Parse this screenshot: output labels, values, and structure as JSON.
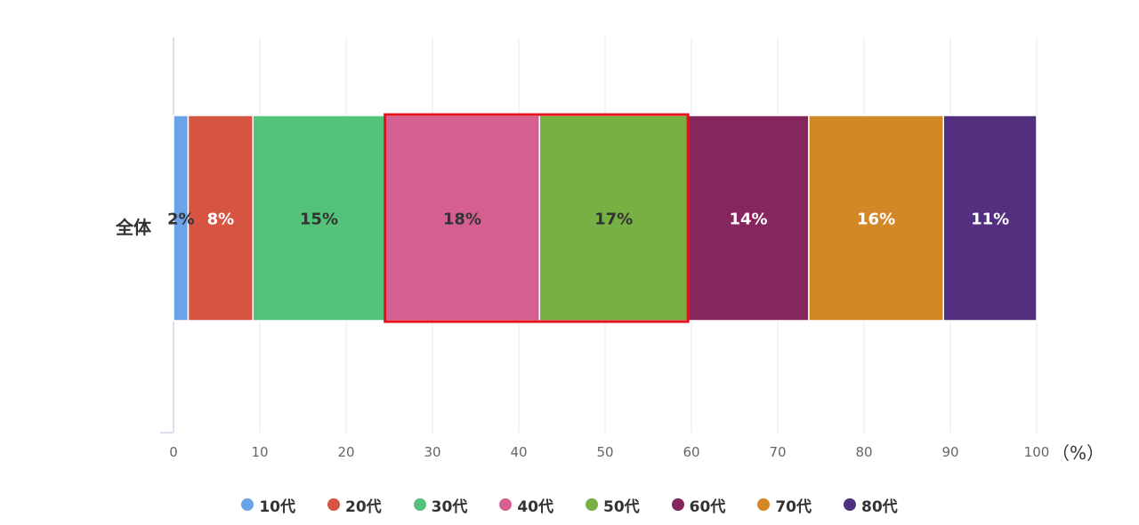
{
  "chart_data": {
    "type": "bar",
    "orientation": "horizontal",
    "stacked": true,
    "categories": [
      "全体"
    ],
    "series": [
      {
        "name": "10代",
        "values": [
          1.7
        ],
        "label": "2%",
        "color": "#6aa3e8"
      },
      {
        "name": "20代",
        "values": [
          7.5
        ],
        "label": "8%",
        "color": "#d55442"
      },
      {
        "name": "30代",
        "values": [
          15.3
        ],
        "label": "15%",
        "color": "#55c27b"
      },
      {
        "name": "40代",
        "values": [
          17.9
        ],
        "label": "18%",
        "color": "#d65f91"
      },
      {
        "name": "50代",
        "values": [
          17.2
        ],
        "label": "17%",
        "color": "#77b043"
      },
      {
        "name": "60代",
        "values": [
          14.0
        ],
        "label": "14%",
        "color": "#85265d"
      },
      {
        "name": "70代",
        "values": [
          15.6
        ],
        "label": "16%",
        "color": "#d38827"
      },
      {
        "name": "80代",
        "values": [
          10.8
        ],
        "label": "11%",
        "color": "#52307f"
      }
    ],
    "label_colors": [
      "#333333",
      "#ffffff",
      "#333333",
      "#333333",
      "#333333",
      "#ffffff",
      "#ffffff",
      "#ffffff"
    ],
    "xlim": [
      0,
      100
    ],
    "x_ticks": [
      "0",
      "10",
      "20",
      "30",
      "40",
      "50",
      "60",
      "70",
      "80",
      "90",
      "100"
    ],
    "x_unit": "（%）",
    "grid": true,
    "legend_position": "bottom",
    "highlight": {
      "series": [
        "40代",
        "50代"
      ],
      "color": "#e3121b"
    }
  }
}
